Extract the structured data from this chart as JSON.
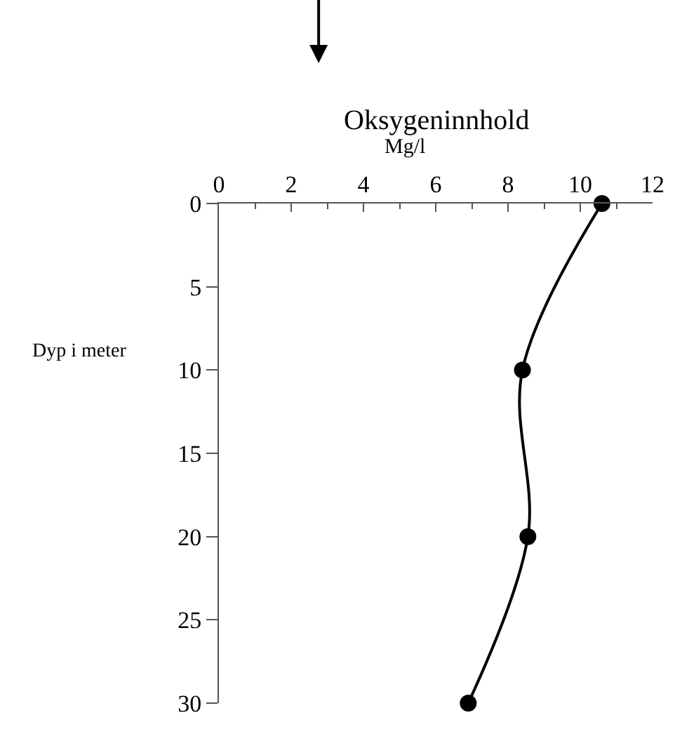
{
  "chart_data": {
    "type": "line",
    "title": "Oksygeninnhold",
    "xlabel": "Mg/l",
    "ylabel": "Dyp i meter",
    "series": [
      {
        "color": "#000000",
        "x": [
          10.6,
          8.4,
          8.55,
          6.9
        ],
        "values": [
          0,
          10,
          20,
          30
        ]
      }
    ],
    "xlim": [
      0,
      12
    ],
    "xticks": [
      0,
      2,
      4,
      6,
      8,
      10,
      12
    ],
    "ylim": [
      30,
      0
    ],
    "yticks": [
      0,
      5,
      10,
      15,
      20,
      25,
      30
    ],
    "marker": "circle",
    "line_style": "solid",
    "legend": false
  }
}
